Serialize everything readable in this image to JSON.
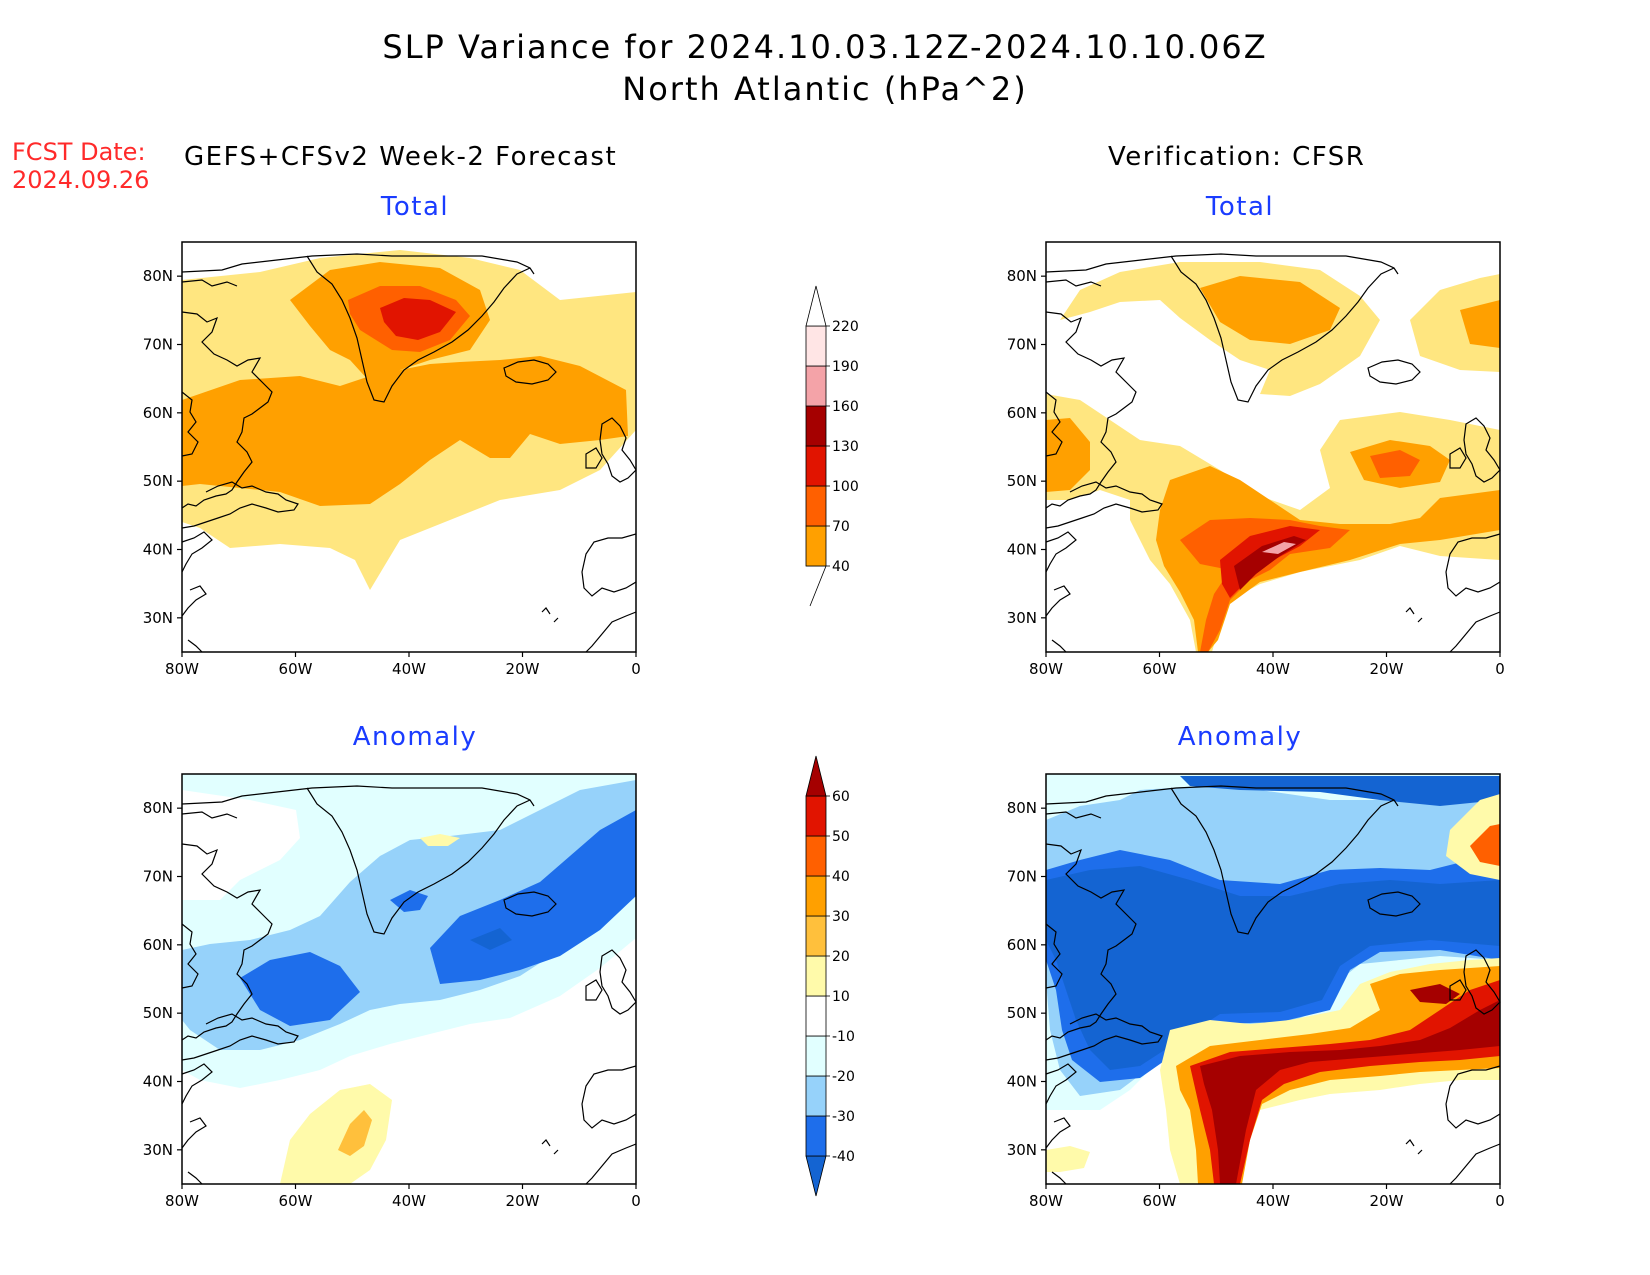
{
  "header": {
    "title_line1": "SLP Variance for 2024.10.03.12Z-2024.10.10.06Z",
    "title_line2": "North Atlantic (hPa^2)",
    "fcst_label": "FCST Date:",
    "fcst_date": "2024.09.26",
    "left_column": "GEFS+CFSv2 Week-2 Forecast",
    "right_column": "Verification: CFSR"
  },
  "panels": [
    {
      "id": "forecast-total",
      "title": "Total"
    },
    {
      "id": "verification-total",
      "title": "Total"
    },
    {
      "id": "forecast-anomaly",
      "title": "Anomaly"
    },
    {
      "id": "verification-anomaly",
      "title": "Anomaly"
    }
  ],
  "axes": {
    "lon_ticks": [
      "80W",
      "60W",
      "40W",
      "20W",
      "0"
    ],
    "lat_ticks": [
      "80N",
      "70N",
      "60N",
      "50N",
      "40N",
      "30N"
    ],
    "lon_range": [
      -80,
      0
    ],
    "lat_range": [
      25,
      85
    ]
  },
  "colorbars": {
    "total": {
      "levels": [
        "40",
        "70",
        "100",
        "130",
        "160",
        "190",
        "220"
      ],
      "colors": [
        "#ffe680",
        "#ffa000",
        "#ff6000",
        "#e11400",
        "#a50000",
        "#f4a3a8",
        "#ffe5e5",
        "#ffffff"
      ]
    },
    "anomaly": {
      "levels": [
        "-40",
        "-30",
        "-20",
        "-10",
        "10",
        "20",
        "30",
        "40",
        "50",
        "60"
      ],
      "colors": [
        "#1464d2",
        "#1e6eeb",
        "#96d2fa",
        "#e1ffff",
        "#ffffff",
        "#fffaaa",
        "#ffc03c",
        "#ffa000",
        "#ff6000",
        "#e11400",
        "#a50000"
      ]
    }
  },
  "colors": {
    "fcst_red": "#ff2a2a",
    "panel_title_blue": "#1a3cff",
    "land_outline": "#000000"
  }
}
